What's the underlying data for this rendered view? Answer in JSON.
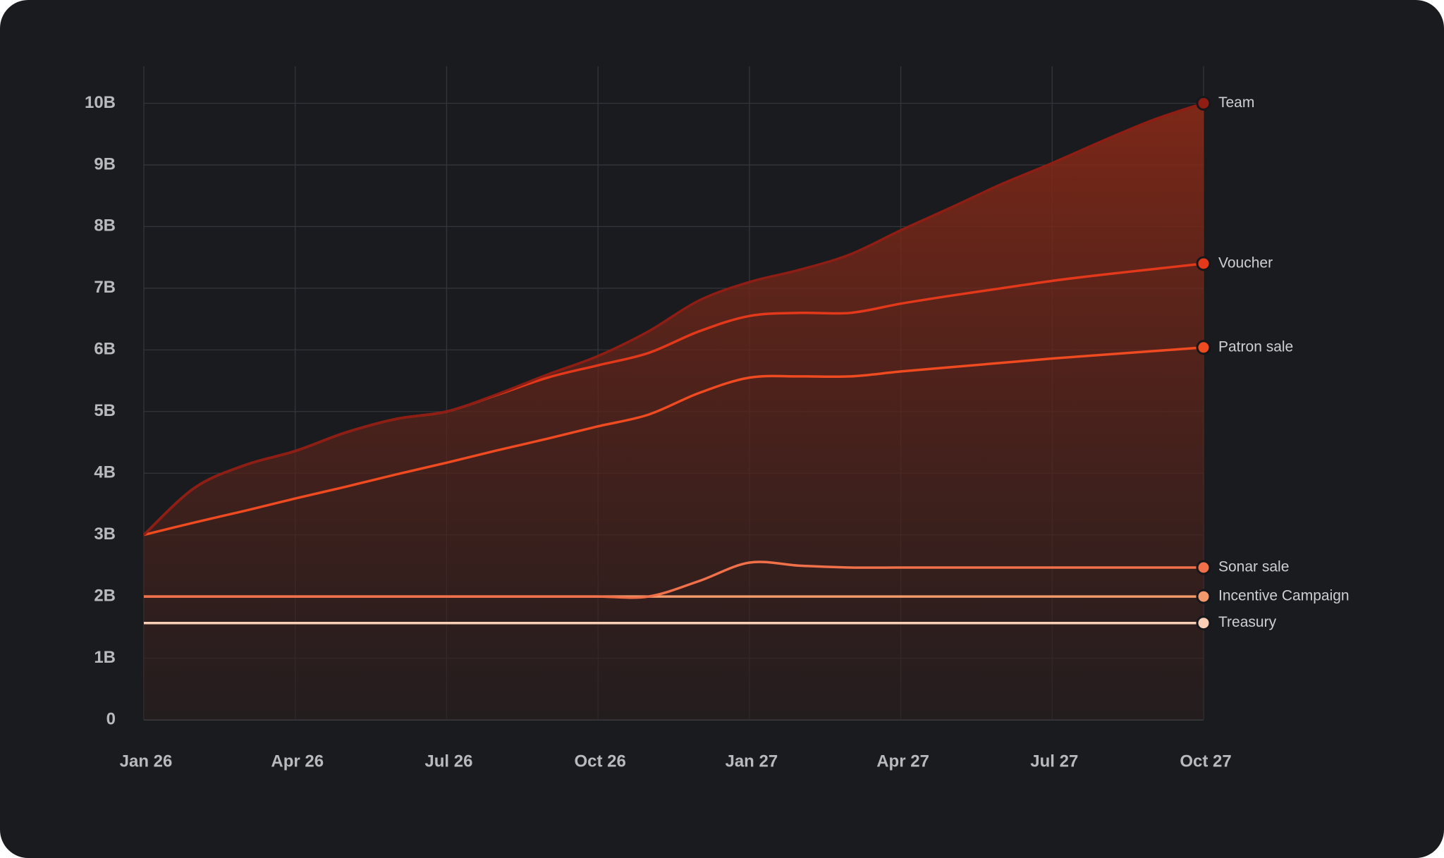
{
  "chart_data": {
    "type": "line",
    "categories": [
      "Jan 26",
      null,
      null,
      "Apr 26",
      null,
      null,
      "Jul 26",
      null,
      null,
      "Oct 26",
      null,
      null,
      "Jan 27",
      null,
      null,
      "Apr 27",
      null,
      null,
      "Jul 27",
      null,
      null,
      "Oct 27"
    ],
    "series": [
      {
        "name": "Team",
        "color": "#8e1d14",
        "values": [
          3.0,
          3.76,
          4.13,
          4.36,
          4.66,
          4.88,
          5.0,
          5.28,
          5.6,
          5.9,
          6.3,
          6.8,
          7.1,
          7.3,
          7.55,
          7.94,
          8.31,
          8.69,
          9.03,
          9.39,
          9.73,
          10.0
        ]
      },
      {
        "name": "Voucher",
        "color": "#e3391a",
        "values": [
          3.0,
          3.76,
          4.13,
          4.36,
          4.66,
          4.88,
          5.0,
          5.27,
          5.55,
          5.75,
          5.95,
          6.3,
          6.55,
          6.6,
          6.6,
          6.75,
          6.88,
          7.0,
          7.12,
          7.22,
          7.31,
          7.4
        ]
      },
      {
        "name": "Patron sale",
        "color": "#ef4a20",
        "values": [
          3.0,
          3.2,
          3.39,
          3.59,
          3.78,
          3.98,
          4.17,
          4.37,
          4.56,
          4.76,
          4.95,
          5.3,
          5.55,
          5.57,
          5.57,
          5.65,
          5.72,
          5.79,
          5.86,
          5.92,
          5.98,
          6.04
        ]
      },
      {
        "name": "Sonar sale",
        "color": "#f0704a",
        "values": [
          2.0,
          2.0,
          2.0,
          2.0,
          2.0,
          2.0,
          2.0,
          2.0,
          2.0,
          2.0,
          2.0,
          2.25,
          2.55,
          2.5,
          2.47,
          2.47,
          2.47,
          2.47,
          2.47,
          2.47,
          2.47,
          2.47
        ]
      },
      {
        "name": "Incentive Campaign",
        "color": "#f39a6c",
        "values": [
          2.0,
          2.0,
          2.0,
          2.0,
          2.0,
          2.0,
          2.0,
          2.0,
          2.0,
          2.0,
          2.0,
          2.0,
          2.0,
          2.0,
          2.0,
          2.0,
          2.0,
          2.0,
          2.0,
          2.0,
          2.0,
          2.0
        ]
      },
      {
        "name": "Treasury",
        "color": "#f8ceb5",
        "values": [
          1.57,
          1.57,
          1.57,
          1.57,
          1.57,
          1.57,
          1.57,
          1.57,
          1.57,
          1.57,
          1.57,
          1.57,
          1.57,
          1.57,
          1.57,
          1.57,
          1.57,
          1.57,
          1.57,
          1.57,
          1.57,
          1.57
        ]
      }
    ],
    "ylim": [
      0,
      10.6
    ],
    "yticks": [
      0,
      {
        "value": 1,
        "label": "1B"
      },
      {
        "value": 2,
        "label": "2B"
      },
      {
        "value": 3,
        "label": "3B"
      },
      {
        "value": 4,
        "label": "4B"
      },
      {
        "value": 5,
        "label": "5B"
      },
      {
        "value": 6,
        "label": "6B"
      },
      {
        "value": 7,
        "label": "7B"
      },
      {
        "value": 8,
        "label": "8B"
      },
      {
        "value": 9,
        "label": "9B"
      },
      {
        "value": 10,
        "label": "10B"
      }
    ],
    "grid": true,
    "area_under_first_series": true
  }
}
